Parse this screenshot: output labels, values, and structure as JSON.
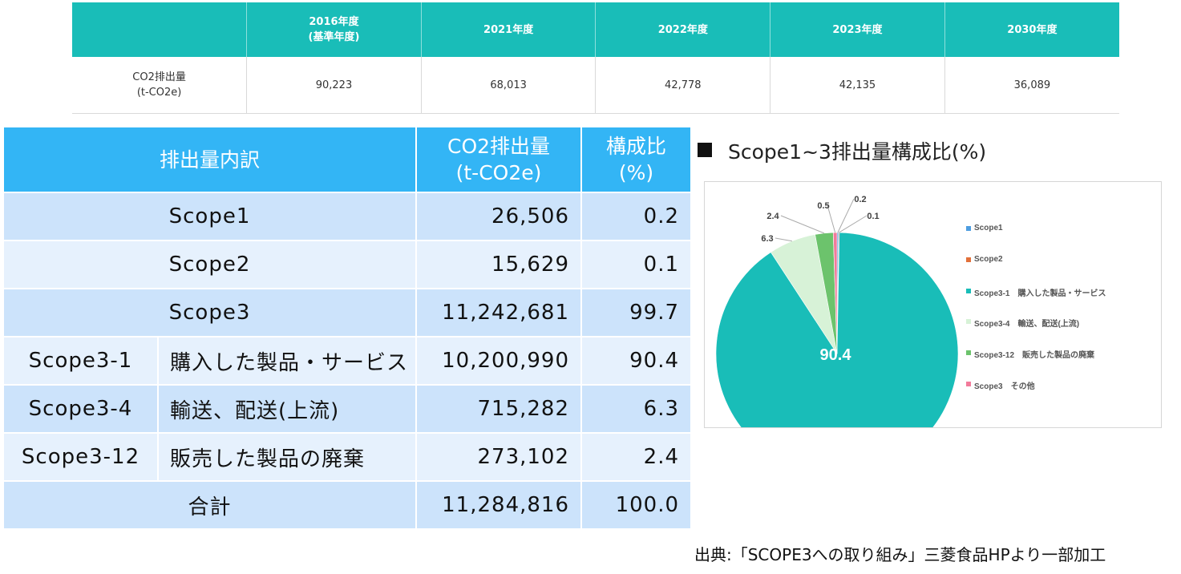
{
  "top_table": {
    "headers": [
      "",
      "2016年度",
      "2021年度",
      "2022年度",
      "2023年度",
      "2030年度"
    ],
    "header_sub": "(基準年度)",
    "row_label_line1": "CO2排出量",
    "row_label_line2": "(t-CO2e)",
    "values": [
      "90,223",
      "68,013",
      "42,778",
      "42,135",
      "36,089"
    ],
    "header_color": "#19bdb8"
  },
  "breakdown_table": {
    "header_item": "排出量内訳",
    "header_co2_line1": "CO2排出量",
    "header_co2_line2": "(t-CO2e)",
    "header_ratio_line1": "構成比",
    "header_ratio_line2": "(%)",
    "rows": [
      {
        "label": "Scope1",
        "value": "26,506",
        "ratio": "0.2"
      },
      {
        "label": "Scope2",
        "value": "15,629",
        "ratio": "0.1"
      },
      {
        "label": "Scope3",
        "value": "11,242,681",
        "ratio": "99.7"
      },
      {
        "label": "Scope3-1",
        "sub": "購入した製品・サービス",
        "value": "10,200,990",
        "ratio": "90.4"
      },
      {
        "label": "Scope3-4",
        "sub": "輸送、配送(上流)",
        "value": "715,282",
        "ratio": "6.3"
      },
      {
        "label": "Scope3-12",
        "sub": "販売した製品の廃棄",
        "value": "273,102",
        "ratio": "2.4"
      },
      {
        "label": "合計",
        "value": "11,284,816",
        "ratio": "100.0"
      }
    ],
    "header_color": "#33b5f5",
    "row_dark": "#cce3fb",
    "row_light": "#e6f1fd"
  },
  "chart_heading": "Scope1~3排出量構成比(%)",
  "chart_data": {
    "type": "pie",
    "title": "Scope1~3排出量構成比(%)",
    "slices": [
      {
        "label": "Scope1",
        "value": 0.2,
        "color": "#4e9de0"
      },
      {
        "label": "Scope2",
        "value": 0.1,
        "color": "#e2703a"
      },
      {
        "label": "Scope3-1 購入した製品・サービス",
        "value": 90.4,
        "color": "#19bdb8"
      },
      {
        "label": "Scope3-4 輸送、配送(上流)",
        "value": 6.3,
        "color": "#d7f2d7"
      },
      {
        "label": "Scope3-12 販売した製品の廃棄",
        "value": 2.4,
        "color": "#6cc36c"
      },
      {
        "label": "Scope3 その他",
        "value": 0.5,
        "color": "#f27b9b"
      }
    ],
    "data_labels": [
      "0.2",
      "0.1",
      "90.4",
      "6.3",
      "2.4",
      "0.5"
    ],
    "legend_placement": "right"
  },
  "legend": [
    "Scope1",
    "Scope2",
    "Scope3-1　購入した製品・サービス",
    "Scope3-4　輸送、配送(上流)",
    "Scope3-12　販売した製品の廃棄",
    "Scope3　その他"
  ],
  "source": "出典:「SCOPE3への取り組み」三菱食品HPより一部加工"
}
